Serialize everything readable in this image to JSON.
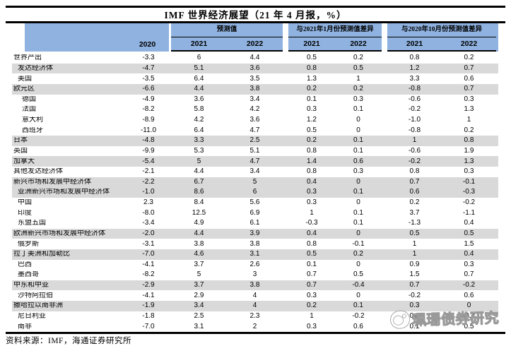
{
  "title": "IMF 世界经济展望（21 年 4 月报，%）",
  "source_note": "资料来源：IMF，海通证券研究所",
  "watermark": {
    "logo_icon": "cartoon-face-logo-icon",
    "text": "珮珊债券研究"
  },
  "colors": {
    "header_blue": "#8FB2E0",
    "row_gray": "#D9D9D9",
    "rule_black": "#000000",
    "watermark_gray": "#9A9A9A"
  },
  "chart_data": {
    "type": "table",
    "title": "IMF 世界经济展望（21 年 4 月报，%）",
    "column_groups": [
      {
        "label": "",
        "columns": [
          "2020"
        ]
      },
      {
        "label": "预测值",
        "columns": [
          "2021",
          "2022"
        ]
      },
      {
        "label": "与2021年1月份预测值差异",
        "columns": [
          "2021",
          "2022"
        ]
      },
      {
        "label": "与2020年10月份预测值差异",
        "columns": [
          "2021",
          "2022"
        ]
      }
    ],
    "rows": [
      {
        "name": "世界产出",
        "indent": 0,
        "shaded": false,
        "values": [
          "-3.3",
          "6",
          "4.4",
          "0.5",
          "0.2",
          "0.8",
          "0.2"
        ]
      },
      {
        "name": "发达经济体",
        "indent": 1,
        "shaded": true,
        "values": [
          "-4.7",
          "5.1",
          "3.6",
          "0.8",
          "0.5",
          "1.2",
          "0.7"
        ]
      },
      {
        "name": "美国",
        "indent": 1,
        "shaded": false,
        "values": [
          "-3.5",
          "6.4",
          "3.5",
          "1.3",
          "1",
          "3.3",
          "0.6"
        ]
      },
      {
        "name": "欧元区",
        "indent": 0,
        "shaded": true,
        "values": [
          "-6.6",
          "4.4",
          "3.8",
          "0.2",
          "0.2",
          "-0.8",
          "0.7"
        ]
      },
      {
        "name": "德国",
        "indent": 2,
        "shaded": false,
        "values": [
          "-4.9",
          "3.6",
          "3.4",
          "0.1",
          "0.3",
          "-0.6",
          "0.3"
        ]
      },
      {
        "name": "法国",
        "indent": 2,
        "shaded": false,
        "values": [
          "-8.2",
          "5.8",
          "4.2",
          "0.3",
          "0.1",
          "-0.2",
          "1.3"
        ]
      },
      {
        "name": "意大利",
        "indent": 2,
        "shaded": false,
        "values": [
          "-8.9",
          "4.2",
          "3.6",
          "1.2",
          "0",
          "-1.0",
          "1"
        ]
      },
      {
        "name": "西班牙",
        "indent": 2,
        "shaded": false,
        "values": [
          "-11.0",
          "6.4",
          "4.7",
          "0.5",
          "0",
          "-0.8",
          "0.2"
        ]
      },
      {
        "name": "日本",
        "indent": 0,
        "shaded": true,
        "values": [
          "-4.8",
          "3.3",
          "2.5",
          "0.2",
          "0.1",
          "1",
          "0.8"
        ]
      },
      {
        "name": "英国",
        "indent": 0,
        "shaded": false,
        "values": [
          "-9.9",
          "5.3",
          "5.1",
          "0.8",
          "0.1",
          "-0.6",
          "1.9"
        ]
      },
      {
        "name": "加拿大",
        "indent": 0,
        "shaded": true,
        "values": [
          "-5.4",
          "5",
          "4.7",
          "1.4",
          "0.6",
          "-0.2",
          "1.3"
        ]
      },
      {
        "name": "其他发达经济体",
        "indent": 0,
        "shaded": false,
        "values": [
          "-2.1",
          "4.4",
          "3.4",
          "0.8",
          "0.3",
          "0.8",
          "0.3"
        ]
      },
      {
        "name": "新兴市场和发展中经济体",
        "indent": 0,
        "shaded": true,
        "values": [
          "-2.2",
          "6.7",
          "5",
          "0.4",
          "0",
          "0.7",
          "-0.1"
        ]
      },
      {
        "name": "亚洲新兴市场和发展中经济体",
        "indent": 1,
        "shaded": true,
        "values": [
          "-1.0",
          "8.6",
          "6",
          "0.3",
          "0.1",
          "0.6",
          "-0.3"
        ]
      },
      {
        "name": "中国",
        "indent": 1,
        "shaded": false,
        "values": [
          "2.3",
          "8.4",
          "5.6",
          "0.3",
          "0",
          "0.2",
          "-0.2"
        ]
      },
      {
        "name": "印度",
        "indent": 1,
        "shaded": false,
        "values": [
          "-8.0",
          "12.5",
          "6.9",
          "1",
          "0.1",
          "3.7",
          "-1.1"
        ]
      },
      {
        "name": "东盟五国",
        "indent": 1,
        "shaded": false,
        "values": [
          "-3.4",
          "4.9",
          "6.1",
          "-0.3",
          "0.1",
          "-1.3",
          "0.4"
        ]
      },
      {
        "name": "欧洲新兴市场和发展中经济体",
        "indent": 0,
        "shaded": true,
        "values": [
          "-2.0",
          "4.4",
          "3.9",
          "0.4",
          "0",
          "0.5",
          "0.5"
        ]
      },
      {
        "name": "俄罗斯",
        "indent": 1,
        "shaded": false,
        "values": [
          "-3.1",
          "3.8",
          "3.8",
          "0.8",
          "-0.1",
          "1",
          "1.5"
        ]
      },
      {
        "name": "拉丁美洲和加勒比",
        "indent": 0,
        "shaded": true,
        "values": [
          "-7.0",
          "4.6",
          "3.1",
          "0.5",
          "0.2",
          "1",
          "0.4"
        ]
      },
      {
        "name": "巴西",
        "indent": 1,
        "shaded": false,
        "values": [
          "-4.1",
          "3.7",
          "2.6",
          "0.1",
          "0",
          "0.9",
          "0.3"
        ]
      },
      {
        "name": "墨西哥",
        "indent": 1,
        "shaded": false,
        "values": [
          "-8.2",
          "5",
          "3",
          "0.7",
          "0.5",
          "1.5",
          "0.7"
        ]
      },
      {
        "name": "中东和中亚",
        "indent": 0,
        "shaded": true,
        "values": [
          "-2.9",
          "3.7",
          "3.8",
          "0.7",
          "-0.4",
          "0.7",
          "-0.2"
        ]
      },
      {
        "name": "沙特阿拉伯",
        "indent": 1,
        "shaded": false,
        "values": [
          "-4.1",
          "2.9",
          "4",
          "0.3",
          "0",
          "-0.2",
          "0.6"
        ]
      },
      {
        "name": "撒哈拉以南非洲",
        "indent": 0,
        "shaded": true,
        "values": [
          "-1.9",
          "3.4",
          "4",
          "0.2",
          "0.1",
          "0.3",
          "0"
        ]
      },
      {
        "name": "尼日利亚",
        "indent": 1,
        "shaded": false,
        "values": [
          "-1.8",
          "2.5",
          "2.3",
          "1",
          "-0.2",
          "0.8",
          "-0.2"
        ]
      },
      {
        "name": "南非",
        "indent": 1,
        "shaded": false,
        "values": [
          "-7.0",
          "3.1",
          "2",
          "0.3",
          "0.6",
          "0.1",
          "0.5"
        ]
      }
    ]
  }
}
